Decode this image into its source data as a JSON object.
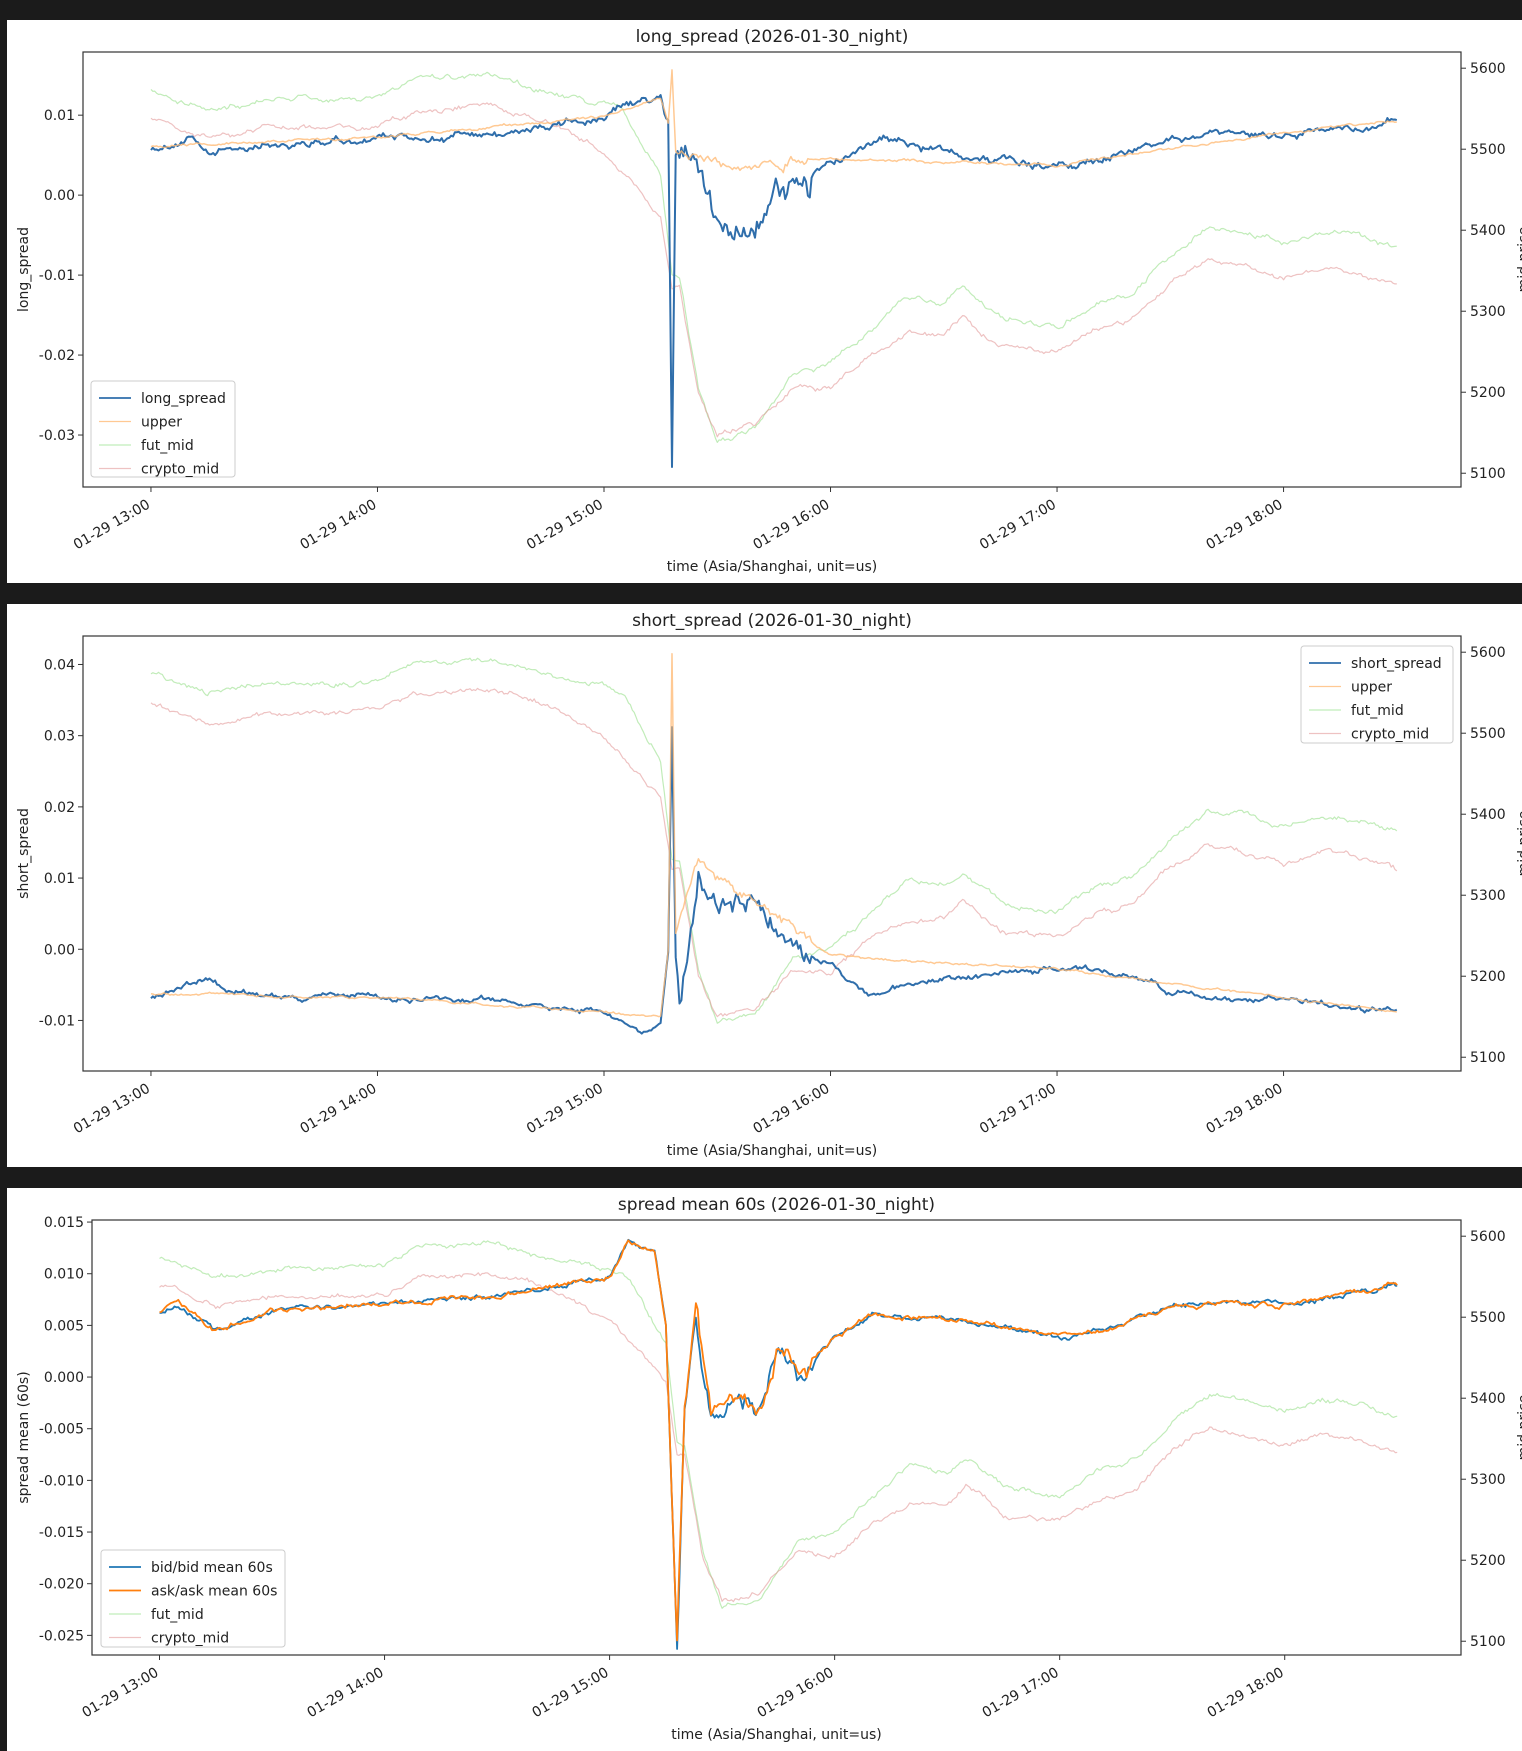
{
  "chart_data": [
    {
      "type": "line",
      "title": "long_spread (2026-01-30_night)",
      "xlabel": "time (Asia/Shanghai, unit=us)",
      "ylabel": "long_spread",
      "ylabel_right": "mid price",
      "xlim_minutes_from_1300": [
        -18,
        347
      ],
      "ylim": [
        -0.0365,
        0.0179
      ],
      "ylim_right": [
        5083,
        5620
      ],
      "yticks": [
        {
          "v": 0.01,
          "l": "0.01"
        },
        {
          "v": 0,
          "l": "0.00"
        },
        {
          "v": -0.01,
          "l": "-0.01"
        },
        {
          "v": -0.02,
          "l": "-0.02"
        },
        {
          "v": -0.03,
          "l": "-0.03"
        }
      ],
      "yticks_right": [
        {
          "v": 5600,
          "l": "5600"
        },
        {
          "v": 5500,
          "l": "5500"
        },
        {
          "v": 5400,
          "l": "5400"
        },
        {
          "v": 5300,
          "l": "5300"
        },
        {
          "v": 5200,
          "l": "5200"
        },
        {
          "v": 5100,
          "l": "5100"
        }
      ],
      "xticks": [
        {
          "v": 0,
          "l": "01-29 13:00"
        },
        {
          "v": 60,
          "l": "01-29 14:00"
        },
        {
          "v": 120,
          "l": "01-29 15:00"
        },
        {
          "v": 180,
          "l": "01-29 16:00"
        },
        {
          "v": 240,
          "l": "01-29 17:00"
        },
        {
          "v": 300,
          "l": "01-29 18:00"
        }
      ],
      "legend_position": "lower-left",
      "series": [
        {
          "name": "long_spread",
          "axis": "left",
          "color": "#2f6eab",
          "width": 2,
          "opacity": 1,
          "noise": 0.0006,
          "x": [
            0,
            10,
            15,
            30,
            60,
            90,
            120,
            125,
            135,
            137,
            138,
            139,
            145,
            150,
            160,
            165,
            180,
            195,
            210,
            240,
            255,
            270,
            300,
            330
          ],
          "y": [
            0.006,
            0.007,
            0.005,
            0.0065,
            0.007,
            0.0075,
            0.0095,
            0.011,
            0.012,
            0.008,
            -0.033,
            0.005,
            0.003,
            -0.004,
            -0.003,
            0.0,
            0.004,
            0.007,
            0.0055,
            0.0035,
            0.005,
            0.007,
            0.0075,
            0.009
          ]
        },
        {
          "name": "upper",
          "axis": "left",
          "color": "#ffbb78",
          "width": 1.5,
          "opacity": 0.8,
          "noise": 0.0002,
          "x": [
            0,
            60,
            120,
            135,
            137,
            138,
            139,
            145,
            180,
            240,
            300,
            330
          ],
          "y": [
            0.0062,
            0.0072,
            0.0098,
            0.0122,
            0.0095,
            0.0155,
            0.006,
            0.004,
            0.0045,
            0.0038,
            0.0078,
            0.0093
          ]
        },
        {
          "name": "fut_mid",
          "axis": "right",
          "color": "#98df8a",
          "width": 1.2,
          "opacity": 0.6,
          "noise": 4,
          "x": [
            0,
            15,
            30,
            60,
            70,
            90,
            105,
            120,
            125,
            135,
            138,
            140,
            145,
            150,
            160,
            170,
            180,
            190,
            200,
            210,
            215,
            225,
            240,
            250,
            260,
            270,
            280,
            290,
            300,
            310,
            320,
            330
          ],
          "y": [
            5575,
            5548,
            5562,
            5562,
            5587,
            5590,
            5570,
            5556,
            5548,
            5467,
            5344,
            5340,
            5207,
            5140,
            5153,
            5221,
            5235,
            5276,
            5317,
            5310,
            5330,
            5290,
            5280,
            5310,
            5325,
            5371,
            5405,
            5398,
            5385,
            5398,
            5395,
            5377
          ]
        },
        {
          "name": "crypto_mid",
          "axis": "right",
          "color": "#e39a9a",
          "width": 1.2,
          "opacity": 0.6,
          "noise": 4,
          "x": [
            0,
            15,
            30,
            60,
            70,
            90,
            105,
            120,
            125,
            135,
            138,
            140,
            145,
            150,
            160,
            170,
            180,
            190,
            200,
            210,
            215,
            225,
            240,
            250,
            260,
            270,
            280,
            290,
            300,
            310,
            320,
            330
          ],
          "y": [
            5540,
            5512,
            5525,
            5527,
            5548,
            5555,
            5535,
            5495,
            5470,
            5420,
            5330,
            5330,
            5200,
            5150,
            5160,
            5205,
            5205,
            5245,
            5270,
            5270,
            5295,
            5255,
            5250,
            5275,
            5290,
            5335,
            5365,
            5355,
            5340,
            5355,
            5350,
            5330
          ]
        }
      ]
    },
    {
      "type": "line",
      "title": "short_spread (2026-01-30_night)",
      "xlabel": "time (Asia/Shanghai, unit=us)",
      "ylabel": "short_spread",
      "ylabel_right": "mid price",
      "xlim_minutes_from_1300": [
        -18,
        347
      ],
      "ylim": [
        -0.0171,
        0.044
      ],
      "ylim_right": [
        5083,
        5620
      ],
      "yticks": [
        {
          "v": 0.04,
          "l": "0.04"
        },
        {
          "v": 0.03,
          "l": "0.03"
        },
        {
          "v": 0.02,
          "l": "0.02"
        },
        {
          "v": 0.01,
          "l": "0.01"
        },
        {
          "v": 0,
          "l": "0.00"
        },
        {
          "v": -0.01,
          "l": "-0.01"
        }
      ],
      "yticks_right": [
        {
          "v": 5600,
          "l": "5600"
        },
        {
          "v": 5500,
          "l": "5500"
        },
        {
          "v": 5400,
          "l": "5400"
        },
        {
          "v": 5300,
          "l": "5300"
        },
        {
          "v": 5200,
          "l": "5200"
        },
        {
          "v": 5100,
          "l": "5100"
        }
      ],
      "xticks": [
        {
          "v": 0,
          "l": "01-29 13:00"
        },
        {
          "v": 60,
          "l": "01-29 14:00"
        },
        {
          "v": 120,
          "l": "01-29 15:00"
        },
        {
          "v": 180,
          "l": "01-29 16:00"
        },
        {
          "v": 240,
          "l": "01-29 17:00"
        },
        {
          "v": 300,
          "l": "01-29 18:00"
        }
      ],
      "legend_position": "upper-right",
      "series": [
        {
          "name": "short_spread",
          "axis": "left",
          "color": "#2f6eab",
          "width": 2,
          "opacity": 1,
          "noise": 0.0005,
          "x": [
            0,
            15,
            20,
            60,
            90,
            120,
            130,
            135,
            137,
            138,
            139,
            140,
            145,
            150,
            160,
            170,
            180,
            190,
            210,
            240,
            255,
            270,
            300,
            330
          ],
          "y": [
            -0.0065,
            -0.004,
            -0.006,
            -0.007,
            -0.007,
            -0.009,
            -0.012,
            -0.01,
            0.0,
            0.033,
            0.0,
            -0.008,
            0.01,
            0.005,
            0.008,
            0.0,
            -0.002,
            -0.006,
            -0.004,
            -0.003,
            -0.003,
            -0.006,
            -0.007,
            -0.009
          ]
        },
        {
          "name": "upper",
          "axis": "left",
          "color": "#ffbb78",
          "width": 1.5,
          "opacity": 0.8,
          "noise": 0.0002,
          "x": [
            0,
            60,
            120,
            135,
            137,
            138,
            139,
            145,
            160,
            180,
            240,
            300,
            330
          ],
          "y": [
            -0.0062,
            -0.0068,
            -0.0088,
            -0.0095,
            0.0,
            0.041,
            0.002,
            0.012,
            0.006,
            -0.001,
            -0.0028,
            -0.0068,
            -0.0088
          ]
        },
        {
          "name": "fut_mid",
          "axis": "right",
          "color": "#98df8a",
          "width": 1.2,
          "opacity": 0.6,
          "noise": 4,
          "x": [
            0,
            15,
            30,
            60,
            70,
            90,
            105,
            120,
            125,
            135,
            138,
            140,
            145,
            150,
            160,
            170,
            180,
            190,
            200,
            210,
            215,
            225,
            240,
            250,
            260,
            270,
            280,
            290,
            300,
            310,
            320,
            330
          ],
          "y": [
            5575,
            5548,
            5562,
            5562,
            5587,
            5590,
            5570,
            5556,
            5548,
            5467,
            5344,
            5340,
            5207,
            5140,
            5153,
            5221,
            5235,
            5276,
            5317,
            5310,
            5330,
            5290,
            5280,
            5310,
            5325,
            5371,
            5405,
            5398,
            5385,
            5398,
            5395,
            5377
          ]
        },
        {
          "name": "crypto_mid",
          "axis": "right",
          "color": "#e39a9a",
          "width": 1.2,
          "opacity": 0.6,
          "noise": 4,
          "x": [
            0,
            15,
            30,
            60,
            70,
            90,
            105,
            120,
            125,
            135,
            138,
            140,
            145,
            150,
            160,
            170,
            180,
            190,
            200,
            210,
            215,
            225,
            240,
            250,
            260,
            270,
            280,
            290,
            300,
            310,
            320,
            330
          ],
          "y": [
            5540,
            5512,
            5525,
            5527,
            5548,
            5555,
            5535,
            5495,
            5470,
            5420,
            5330,
            5330,
            5200,
            5150,
            5160,
            5205,
            5205,
            5245,
            5270,
            5270,
            5295,
            5255,
            5250,
            5275,
            5290,
            5335,
            5365,
            5355,
            5340,
            5355,
            5350,
            5330
          ]
        }
      ]
    },
    {
      "type": "line",
      "title": "spread mean 60s (2026-01-30_night)",
      "xlabel": "time (Asia/Shanghai, unit=us)",
      "ylabel": "spread mean (60s)",
      "ylabel_right": "mid price",
      "xlim_minutes_from_1300": [
        -18,
        347
      ],
      "ylim": [
        -0.0269,
        0.0152
      ],
      "ylim_right": [
        5083,
        5620
      ],
      "yticks": [
        {
          "v": 0.015,
          "l": "0.015"
        },
        {
          "v": 0.01,
          "l": "0.010"
        },
        {
          "v": 0.005,
          "l": "0.005"
        },
        {
          "v": 0,
          "l": "0.000"
        },
        {
          "v": -0.005,
          "l": "-0.005"
        },
        {
          "v": -0.01,
          "l": "-0.010"
        },
        {
          "v": -0.015,
          "l": "-0.015"
        },
        {
          "v": -0.02,
          "l": "-0.020"
        },
        {
          "v": -0.025,
          "l": "-0.025"
        }
      ],
      "yticks_right": [
        {
          "v": 5600,
          "l": "5600"
        },
        {
          "v": 5500,
          "l": "5500"
        },
        {
          "v": 5400,
          "l": "5400"
        },
        {
          "v": 5300,
          "l": "5300"
        },
        {
          "v": 5200,
          "l": "5200"
        },
        {
          "v": 5100,
          "l": "5100"
        }
      ],
      "xticks": [
        {
          "v": 0,
          "l": "01-29 13:00"
        },
        {
          "v": 60,
          "l": "01-29 14:00"
        },
        {
          "v": 120,
          "l": "01-29 15:00"
        },
        {
          "v": 180,
          "l": "01-29 16:00"
        },
        {
          "v": 240,
          "l": "01-29 17:00"
        },
        {
          "v": 300,
          "l": "01-29 18:00"
        }
      ],
      "legend_position": "lower-left",
      "series": [
        {
          "name": "bid/bid mean 60s",
          "axis": "left",
          "color": "#1f77b4",
          "width": 1.8,
          "opacity": 1,
          "noise": 0.0003,
          "x": [
            0,
            5,
            15,
            30,
            60,
            90,
            120,
            125,
            132,
            135,
            138,
            140,
            143,
            147,
            155,
            160,
            165,
            170,
            180,
            190,
            210,
            225,
            240,
            255,
            270,
            300,
            330
          ],
          "y": [
            0.0063,
            0.0072,
            0.0045,
            0.0063,
            0.0072,
            0.0078,
            0.0095,
            0.013,
            0.012,
            0.005,
            -0.025,
            -0.002,
            0.007,
            -0.004,
            -0.002,
            -0.004,
            0.002,
            -0.0005,
            0.004,
            0.006,
            0.0055,
            0.005,
            0.0037,
            0.005,
            0.007,
            0.007,
            0.0088
          ]
        },
        {
          "name": "ask/ask mean 60s",
          "axis": "left",
          "color": "#ff7f0e",
          "width": 1.8,
          "opacity": 1,
          "noise": 0.0003,
          "x": [
            0,
            5,
            15,
            30,
            60,
            90,
            120,
            125,
            132,
            135,
            138,
            140,
            143,
            147,
            155,
            160,
            165,
            170,
            180,
            190,
            210,
            225,
            240,
            255,
            270,
            300,
            330
          ],
          "y": [
            0.0064,
            0.0073,
            0.0046,
            0.0064,
            0.0073,
            0.0079,
            0.0096,
            0.0131,
            0.0121,
            0.0051,
            -0.0245,
            -0.0019,
            0.0071,
            -0.0039,
            -0.0019,
            -0.0039,
            0.0021,
            -0.0004,
            0.0041,
            0.0061,
            0.0056,
            0.0051,
            0.0038,
            0.0051,
            0.0071,
            0.0071,
            0.0089
          ]
        },
        {
          "name": "fut_mid",
          "axis": "right",
          "color": "#98df8a",
          "width": 1.2,
          "opacity": 0.6,
          "noise": 4,
          "x": [
            0,
            15,
            30,
            60,
            70,
            90,
            105,
            120,
            125,
            135,
            138,
            140,
            145,
            150,
            160,
            170,
            180,
            190,
            200,
            210,
            215,
            225,
            240,
            250,
            260,
            270,
            280,
            290,
            300,
            310,
            320,
            330
          ],
          "y": [
            5575,
            5548,
            5562,
            5562,
            5587,
            5590,
            5570,
            5556,
            5548,
            5467,
            5344,
            5340,
            5207,
            5140,
            5153,
            5221,
            5235,
            5276,
            5317,
            5310,
            5330,
            5290,
            5280,
            5310,
            5325,
            5371,
            5405,
            5398,
            5385,
            5398,
            5395,
            5377
          ]
        },
        {
          "name": "crypto_mid",
          "axis": "right",
          "color": "#e39a9a",
          "width": 1.2,
          "opacity": 0.6,
          "noise": 4,
          "x": [
            0,
            15,
            30,
            60,
            70,
            90,
            105,
            120,
            125,
            135,
            138,
            140,
            145,
            150,
            160,
            170,
            180,
            190,
            200,
            210,
            215,
            225,
            240,
            250,
            260,
            270,
            280,
            290,
            300,
            310,
            320,
            330
          ],
          "y": [
            5540,
            5512,
            5525,
            5527,
            5548,
            5555,
            5535,
            5495,
            5470,
            5420,
            5330,
            5330,
            5200,
            5150,
            5160,
            5205,
            5205,
            5245,
            5270,
            5270,
            5295,
            5255,
            5250,
            5275,
            5290,
            5335,
            5365,
            5355,
            5340,
            5355,
            5350,
            5330
          ]
        }
      ]
    }
  ]
}
